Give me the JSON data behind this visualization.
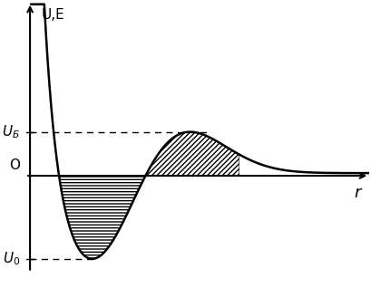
{
  "ylabel": "U,E",
  "xlabel": "r",
  "origin_label": "O",
  "UB_label": "UБ",
  "U0_label": "U₀",
  "background_color": "#ffffff",
  "curve_color": "#000000",
  "axis_color": "#000000",
  "dash_color": "#000000",
  "UB": 0.38,
  "U0": -0.72,
  "xlim": [
    -0.05,
    3.0
  ],
  "ylim": [
    -0.95,
    1.5
  ],
  "figsize": [
    4.1,
    3.18
  ],
  "dpi": 100
}
